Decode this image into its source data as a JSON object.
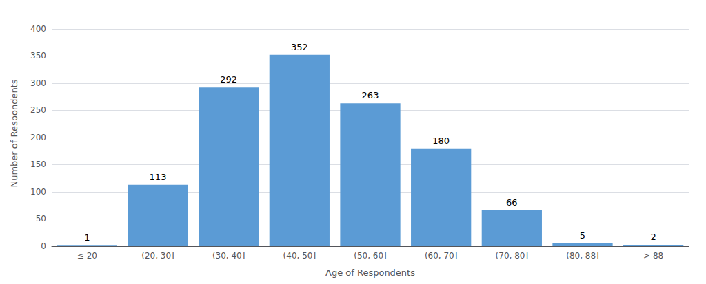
{
  "chart_data": {
    "type": "bar",
    "categories": [
      "≤ 20",
      "(20, 30]",
      "(30, 40]",
      "(40, 50]",
      "(50, 60]",
      "(60, 70]",
      "(70, 80]",
      "(80, 88]",
      "> 88"
    ],
    "values": [
      1,
      113,
      292,
      352,
      263,
      180,
      66,
      5,
      2
    ],
    "color": "#5B9BD5",
    "xlabel": "Age of Respondents",
    "ylabel": "Number of Respondents",
    "ylim": [
      0,
      415
    ],
    "yticks": [
      0,
      50,
      100,
      150,
      200,
      250,
      300,
      350,
      400
    ],
    "grid": true,
    "data_labels": true
  }
}
